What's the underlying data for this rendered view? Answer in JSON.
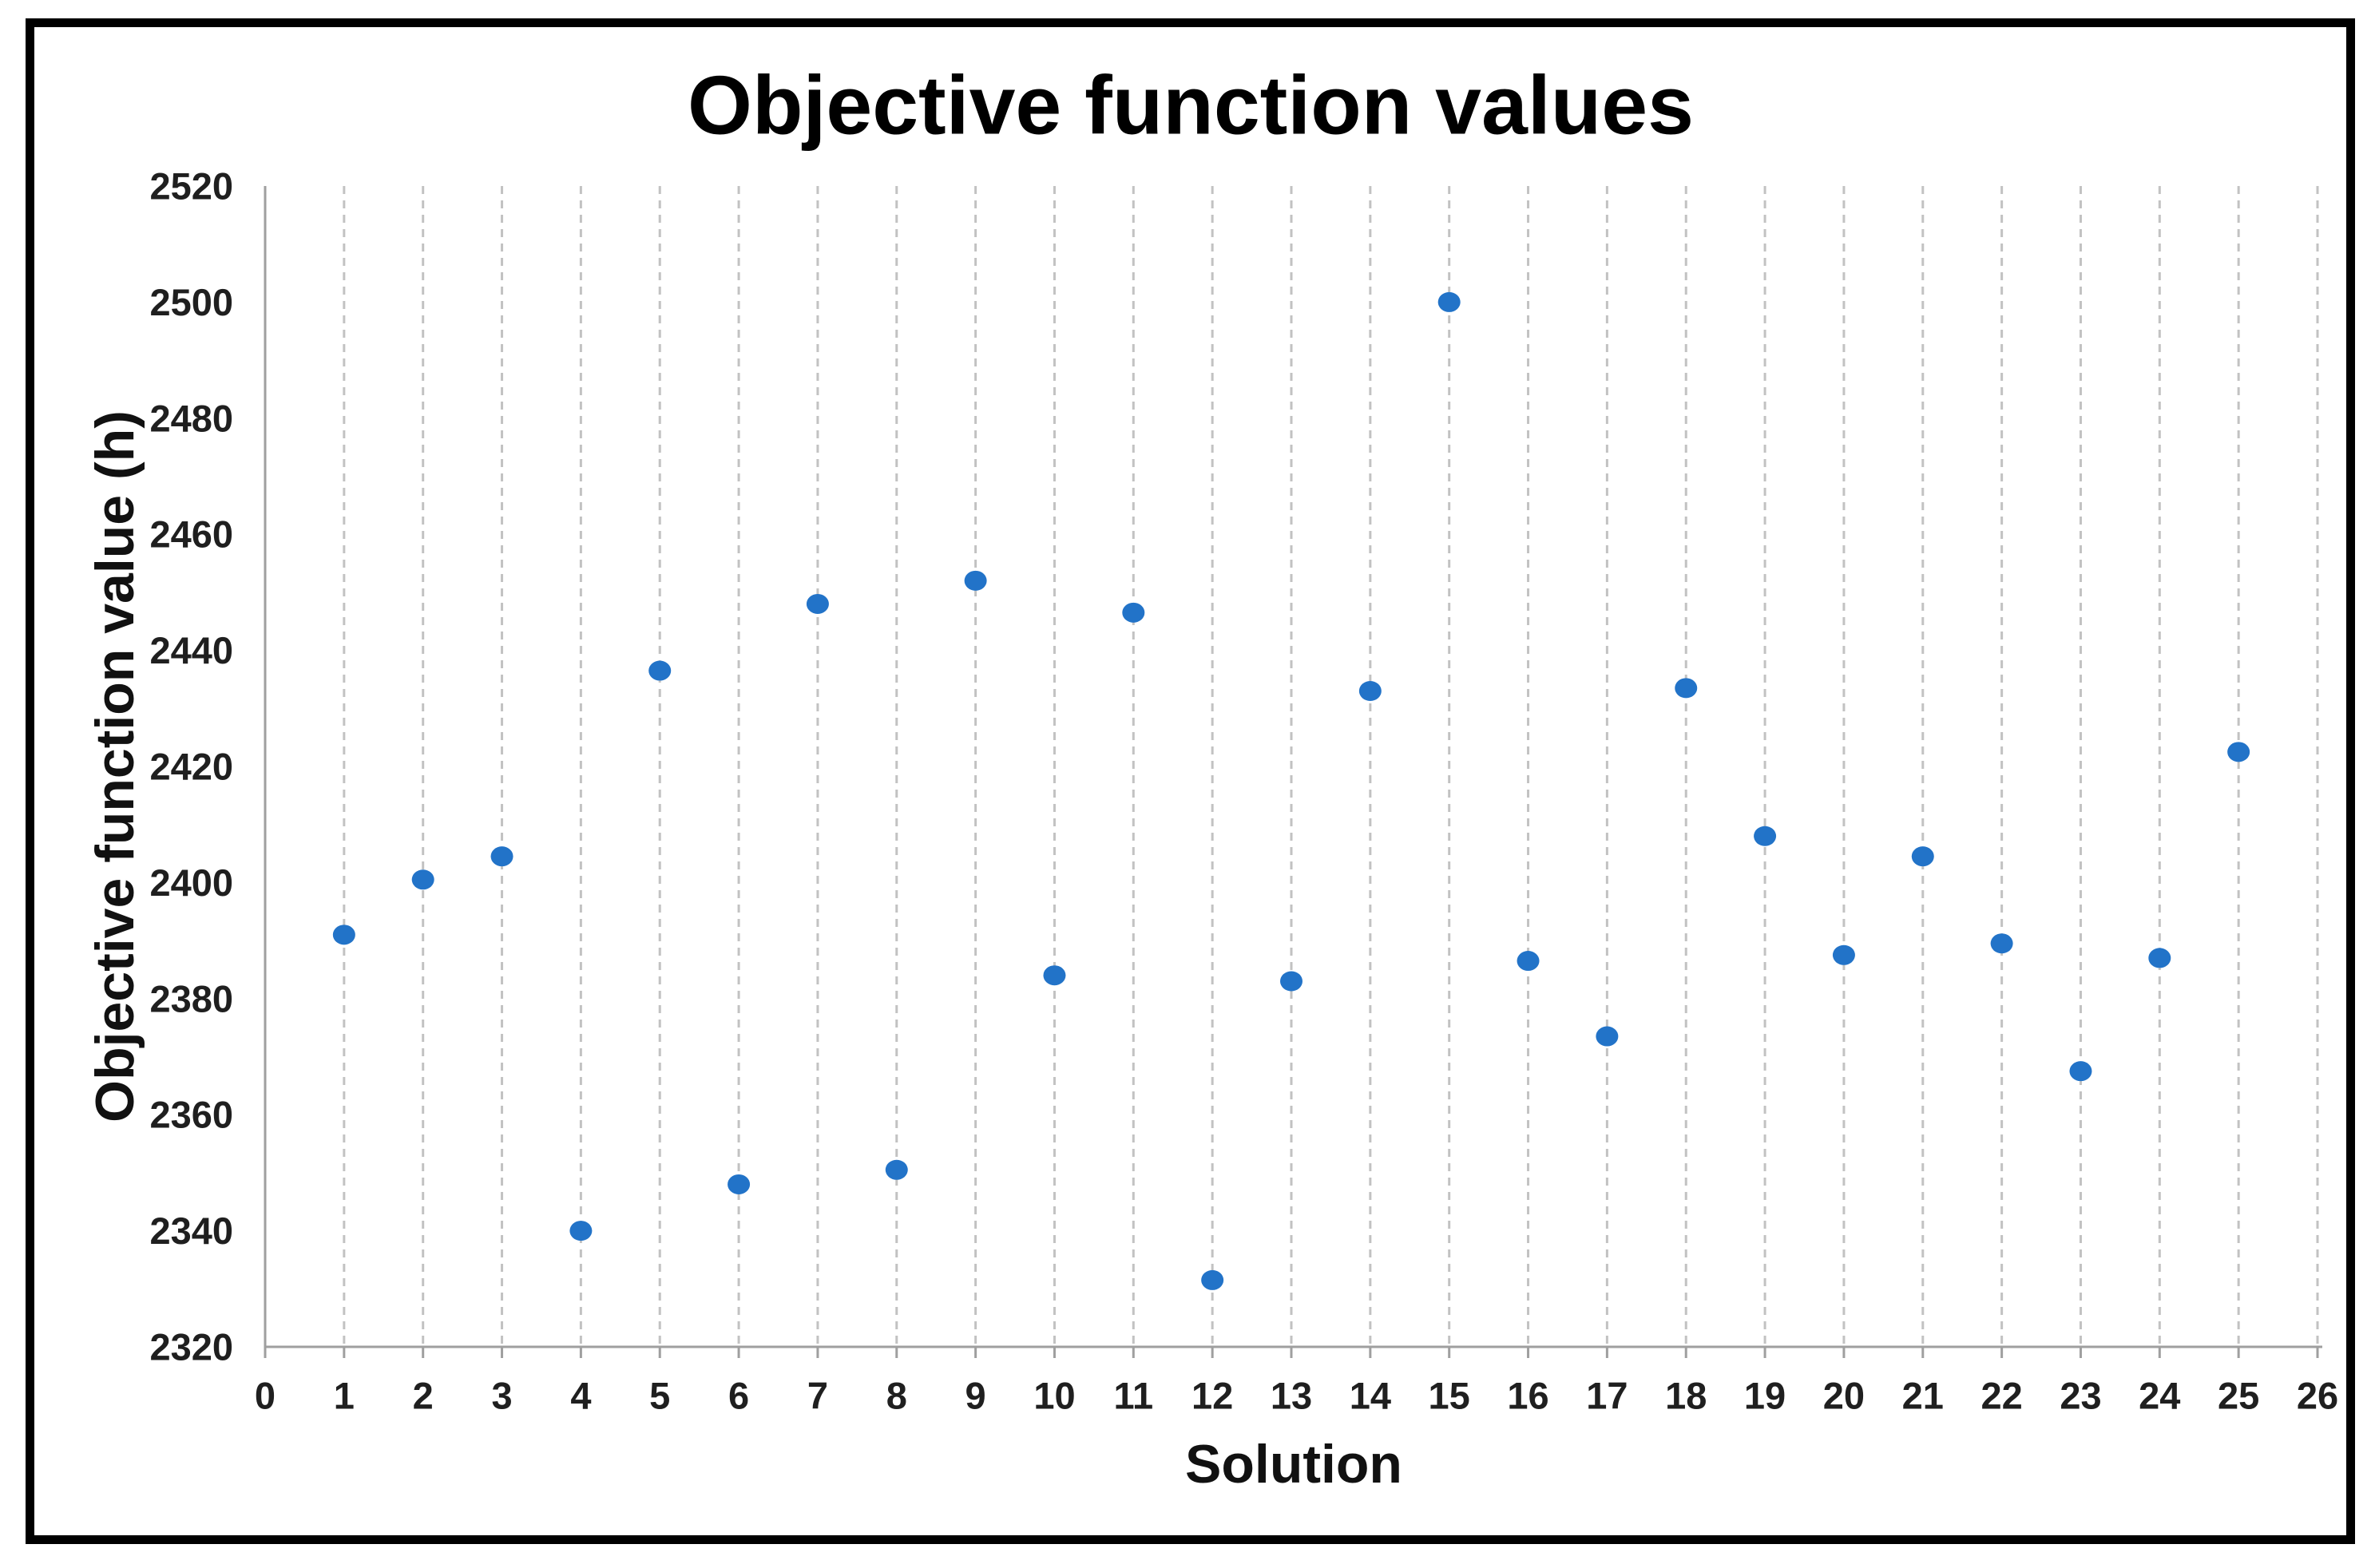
{
  "figure": {
    "background_color": "#ffffff",
    "border_color": "#000000",
    "plot_background_color": "#ffffff"
  },
  "style": {
    "text_color": "#1f1f1f",
    "gridline_color": "#c2c2c2",
    "axis_line_color": "#9f9f9f",
    "marker_color": "#2273c8"
  },
  "chart_data": {
    "type": "scatter",
    "title": "Objective function values",
    "xlabel": "Solution",
    "ylabel": "Objective function value (h)",
    "x": [
      1,
      2,
      3,
      4,
      5,
      6,
      7,
      8,
      9,
      10,
      11,
      12,
      13,
      14,
      15,
      16,
      17,
      18,
      19,
      20,
      21,
      22,
      23,
      24,
      25
    ],
    "y": [
      2391,
      2400.5,
      2404.5,
      2340,
      2436.5,
      2348,
      2448,
      2350.5,
      2452,
      2384,
      2446.5,
      2331.5,
      2383,
      2433,
      2500,
      2386.5,
      2373.5,
      2433.5,
      2408,
      2387.5,
      2404.5,
      2389.5,
      2367.5,
      2387,
      2422.5
    ],
    "xlim": [
      0,
      26
    ],
    "ylim": [
      2320,
      2520
    ],
    "x_ticks": [
      0,
      1,
      2,
      3,
      4,
      5,
      6,
      7,
      8,
      9,
      10,
      11,
      12,
      13,
      14,
      15,
      16,
      17,
      18,
      19,
      20,
      21,
      22,
      23,
      24,
      25,
      26
    ],
    "y_ticks": [
      2320,
      2340,
      2360,
      2380,
      2400,
      2420,
      2440,
      2460,
      2480,
      2500,
      2520
    ],
    "grid": "vertical-dashed",
    "legend": "none",
    "marker_shape": "circle"
  }
}
